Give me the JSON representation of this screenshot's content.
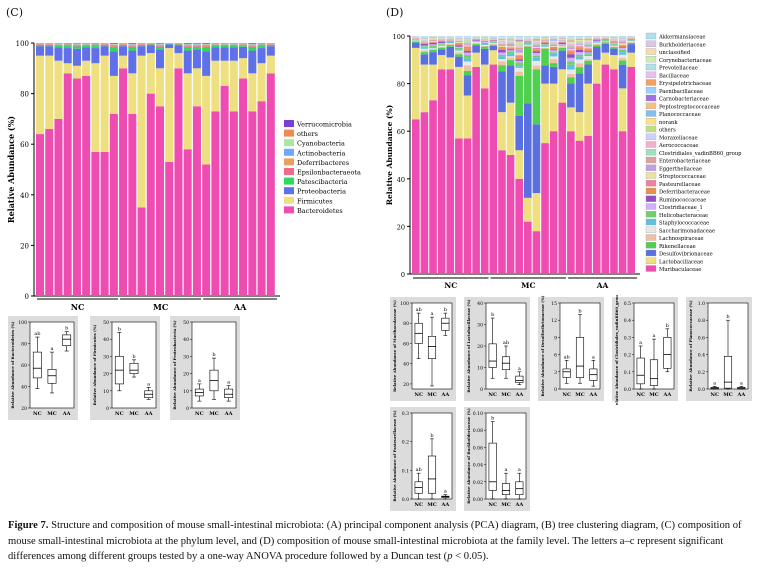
{
  "panel_c": {
    "label": "(C)",
    "ylabel": "Relative Abundance (%)",
    "groups": [
      "NC",
      "MC",
      "AA"
    ],
    "legend": [
      "Verrucomicrobia",
      "others",
      "Cyanobacteria",
      "Actinobacteria",
      "Deferribacteres",
      "Epsilonbacteraeota",
      "Patescibacteria",
      "Proteobacteria",
      "Firmicutes",
      "Bacteroidetes"
    ],
    "colors": {
      "Verrucomicrobia": "#7b3fd6",
      "others": "#f08a50",
      "Cyanobacteria": "#a8e8a0",
      "Actinobacteria": "#6fa8ff",
      "Deferribacteres": "#e8a060",
      "Epsilonbacteraeota": "#f06a8a",
      "Patescibacteria": "#30d860",
      "Proteobacteria": "#6070e8",
      "Firmicutes": "#eee080",
      "Bacteroidetes": "#ee4cb0"
    }
  },
  "panel_d": {
    "label": "(D)",
    "ylabel": "Relative Abundance (%)",
    "groups": [
      "NC",
      "MC",
      "AA"
    ],
    "legend": [
      "Akkermansiaceae",
      "Burkholderiaceae",
      "unclassified",
      "Corynebacteriaceae",
      "Prevotellaceae",
      "Bacillaceae",
      "Erysipelotrichaceae",
      "Paenibacillaceae",
      "Carnobacteriaceae",
      "Peptostreptococcaceae",
      "Planococcaceae",
      "norank",
      "others",
      "Moraxellaceae",
      "Aerococcaceae",
      "Clostridiales_vadinBB60_group",
      "Enterobacteriaceae",
      "Eggerthellaceae",
      "Streptococcaceae",
      "Pasteurellaceae",
      "Deferribacteraceae",
      "Ruminococcaceae",
      "Clostridiaceae_1",
      "Helicobacteraceae",
      "Staphylococcaceae",
      "Saccharimonadaceae",
      "Lachnospiraceae",
      "Rikenellaceae",
      "Desulfovibrionaceae",
      "Lactobacillaceae",
      "Muribaculaceae"
    ],
    "colors": [
      "#b0dff5",
      "#d9c6e8",
      "#f8d9b0",
      "#c9f0b0",
      "#b0e0e8",
      "#e8c0f0",
      "#f0a060",
      "#9ad0ff",
      "#a070e0",
      "#f8c080",
      "#80c0f0",
      "#ffe080",
      "#c0e080",
      "#d0d0ff",
      "#f0b0d0",
      "#a0e0c0",
      "#e0a0a0",
      "#c0a0e0",
      "#f0e0a0",
      "#f080a0",
      "#e89050",
      "#9050c0",
      "#d0b0ff",
      "#70d070",
      "#60c0e0",
      "#e8e8e8",
      "#f0c0a0",
      "#50d050",
      "#5a70e0",
      "#eee080",
      "#ee4cb0"
    ]
  },
  "boxplots_c": [
    {
      "ylabel": "Relative Abundance of Bacteroidetes (%)",
      "ticks": [
        "20",
        "40",
        "60",
        "80",
        "100"
      ],
      "ymin": 20,
      "ymax": 100,
      "letters": [
        "ab",
        "a",
        "b"
      ],
      "groups": [
        "NC",
        "MC",
        "AA"
      ],
      "boxes": [
        [
          38,
          48,
          57,
          72,
          86
        ],
        [
          34,
          43,
          50,
          56,
          72
        ],
        [
          73,
          78,
          84,
          88,
          91
        ]
      ]
    },
    {
      "ylabel": "Relative Abundance of Firmicutes (%)",
      "ticks": [
        "0",
        "10",
        "20",
        "30",
        "40",
        "50"
      ],
      "ymin": 0,
      "ymax": 50,
      "letters": [
        "b",
        "b",
        "a"
      ],
      "groups": [
        "NC",
        "MC",
        "AA"
      ],
      "boxes": [
        [
          10,
          14,
          22,
          30,
          44
        ],
        [
          18,
          20,
          22,
          26,
          28
        ],
        [
          5,
          6,
          8,
          10,
          12
        ]
      ]
    },
    {
      "ylabel": "Relative Abundance of Proteobacteria (%)",
      "ticks": [
        "0",
        "10",
        "20",
        "30",
        "40",
        "50"
      ],
      "ymin": 0,
      "ymax": 50,
      "letters": [
        "a",
        "b",
        "a"
      ],
      "groups": [
        "NC",
        "MC",
        "AA"
      ],
      "boxes": [
        [
          4,
          7,
          9,
          11,
          14
        ],
        [
          5,
          10,
          16,
          22,
          29
        ],
        [
          4,
          6,
          8,
          11,
          13
        ]
      ]
    }
  ],
  "boxplots_d": [
    {
      "ylabel": "Relative Abundance of Muribaculaceae (%)",
      "ticks": [
        "20",
        "40",
        "60",
        "80",
        "100"
      ],
      "ymin": 15,
      "ymax": 100,
      "letters": [
        "ab",
        "a",
        "b"
      ],
      "groups": [
        "NC",
        "MC",
        "AA"
      ],
      "boxes": [
        [
          45,
          60,
          70,
          80,
          90
        ],
        [
          18,
          45,
          57,
          67,
          86
        ],
        [
          68,
          73,
          80,
          85,
          90
        ]
      ]
    },
    {
      "ylabel": "Relative Abundance of Lactobacillaceae (%)",
      "ticks": [
        "0",
        "10",
        "20",
        "30",
        "40"
      ],
      "ymin": 0,
      "ymax": 40,
      "letters": [
        "b",
        "ab",
        "a"
      ],
      "groups": [
        "NC",
        "MC",
        "AA"
      ],
      "boxes": [
        [
          5,
          10,
          13,
          21,
          33
        ],
        [
          5,
          9,
          12,
          15,
          20
        ],
        [
          2,
          3,
          4,
          6,
          8
        ]
      ]
    },
    {
      "ylabel": "Relative Abundance of Desulfovibrionaceae (%)",
      "ticks": [
        "0",
        "3",
        "6",
        "9",
        "12",
        "15"
      ],
      "ymin": 0,
      "ymax": 15,
      "letters": [
        "ab",
        "b",
        "a"
      ],
      "groups": [
        "NC",
        "MC",
        "AA"
      ],
      "boxes": [
        [
          1,
          2,
          3,
          3.5,
          5
        ],
        [
          1,
          2,
          4,
          9,
          13
        ],
        [
          0.5,
          1.5,
          2.5,
          3.5,
          5
        ]
      ]
    },
    {
      "ylabel": "Relative Abundance of Clostridiales_vadinBB60_group (%)",
      "ticks": [
        "0.0",
        "0.1",
        "0.2",
        "0.3",
        "0.4",
        "0.5"
      ],
      "ymin": 0,
      "ymax": 0.5,
      "letters": [
        "a",
        "a",
        "b"
      ],
      "groups": [
        "NC",
        "MC",
        "AA"
      ],
      "boxes": [
        [
          0.0,
          0.03,
          0.08,
          0.18,
          0.25
        ],
        [
          0.0,
          0.02,
          0.06,
          0.17,
          0.29
        ],
        [
          0.1,
          0.12,
          0.2,
          0.3,
          0.35
        ]
      ]
    },
    {
      "ylabel": "Relative Abundance of Planococcaceae (%)",
      "ticks": [
        "0.0",
        "0.2",
        "0.4",
        "0.6",
        "0.8",
        "1.0"
      ],
      "ymin": 0,
      "ymax": 1,
      "letters": [
        "a",
        "b",
        "a"
      ],
      "groups": [
        "NC",
        "MC",
        "AA"
      ],
      "boxes": [
        [
          0,
          0,
          0.01,
          0.02,
          0.03
        ],
        [
          0,
          0.01,
          0.08,
          0.38,
          0.8
        ],
        [
          0,
          0,
          0.01,
          0.02,
          0.03
        ]
      ]
    },
    {
      "ylabel": "Relative Abundance of Pasteurellaceae (%)",
      "ticks": [
        "0.0",
        "0.1",
        "0.2",
        "0.3"
      ],
      "ymin": 0,
      "ymax": 0.3,
      "letters": [
        "ab",
        "b",
        "a"
      ],
      "groups": [
        "NC",
        "MC",
        "AA"
      ],
      "boxes": [
        [
          0.0,
          0.02,
          0.04,
          0.06,
          0.09
        ],
        [
          0.0,
          0.02,
          0.07,
          0.15,
          0.21
        ],
        [
          0.0,
          0.005,
          0.008,
          0.01,
          0.015
        ]
      ]
    },
    {
      "ylabel": "Relative Abundance of Burkholderiaceae (%)",
      "ticks": [
        "0.00",
        "0.02",
        "0.04",
        "0.06",
        "0.08",
        "0.10"
      ],
      "ymin": 0,
      "ymax": 0.1,
      "letters": [
        "b",
        "a",
        "a"
      ],
      "groups": [
        "NC",
        "MC",
        "AA"
      ],
      "boxes": [
        [
          0.0,
          0.01,
          0.02,
          0.065,
          0.09
        ],
        [
          0.0,
          0.005,
          0.01,
          0.018,
          0.03
        ],
        [
          0.0,
          0.005,
          0.012,
          0.02,
          0.03
        ]
      ]
    }
  ],
  "caption": {
    "fig": "Figure 7.",
    "text": " Structure and composition of mouse small-intestinal microbiota: (A) principal component analysis (PCA) diagram, (B) tree clustering diagram, (C) composition of mouse small-intestinal microbiota at the phylum level, and (D) composition of mouse small-intestinal microbiota at the family level. The letters a–c represent significant differences among different groups tested by a one-way ANOVA procedure followed by a Duncan test (",
    "p": "p",
    "tail": " < 0.05)."
  }
}
